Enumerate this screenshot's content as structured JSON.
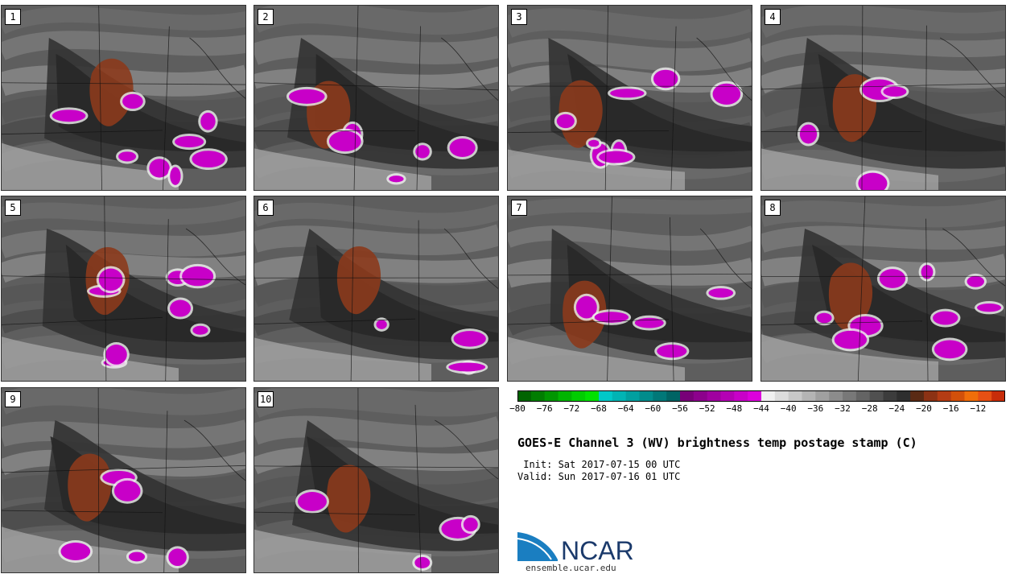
{
  "panels": [
    {
      "label": "1",
      "seed": 11
    },
    {
      "label": "2",
      "seed": 23
    },
    {
      "label": "3",
      "seed": 37
    },
    {
      "label": "4",
      "seed": 41
    },
    {
      "label": "5",
      "seed": 53
    },
    {
      "label": "6",
      "seed": 67
    },
    {
      "label": "7",
      "seed": 71
    },
    {
      "label": "8",
      "seed": 83
    },
    {
      "label": "9",
      "seed": 97
    },
    {
      "label": "10",
      "seed": 103
    }
  ],
  "colorbar": {
    "colors": [
      "#006400",
      "#007d00",
      "#009600",
      "#00b400",
      "#00cd00",
      "#00e100",
      "#00c8c8",
      "#00b4b4",
      "#00a0a0",
      "#008c8c",
      "#007878",
      "#006464",
      "#780078",
      "#8c008c",
      "#a000a0",
      "#b400b4",
      "#c800c8",
      "#dc00dc",
      "#f0f0f0",
      "#dcdcdc",
      "#c8c8c8",
      "#b4b4b4",
      "#a0a0a0",
      "#8c8c8c",
      "#787878",
      "#646464",
      "#505050",
      "#3c3c3c",
      "#2e2e2e",
      "#5a2a14",
      "#8c3214",
      "#b43c14",
      "#d2500a",
      "#f06e0a",
      "#e65014",
      "#c82d0a"
    ],
    "tick_labels": [
      "−80",
      "−76",
      "−72",
      "−68",
      "−64",
      "−60",
      "−56",
      "−52",
      "−48",
      "−44",
      "−40",
      "−36",
      "−32",
      "−28",
      "−24",
      "−20",
      "−16",
      "−12"
    ],
    "min": -80,
    "max": -10
  },
  "title": "GOES-E Channel 3 (WV) brightness temp postage stamp (C)",
  "init": " Init: Sat 2017-07-15 00 UTC",
  "valid": "Valid: Sun 2017-07-16 01 UTC",
  "logo_text": "NCAR",
  "site": "ensemble.ucar.edu"
}
